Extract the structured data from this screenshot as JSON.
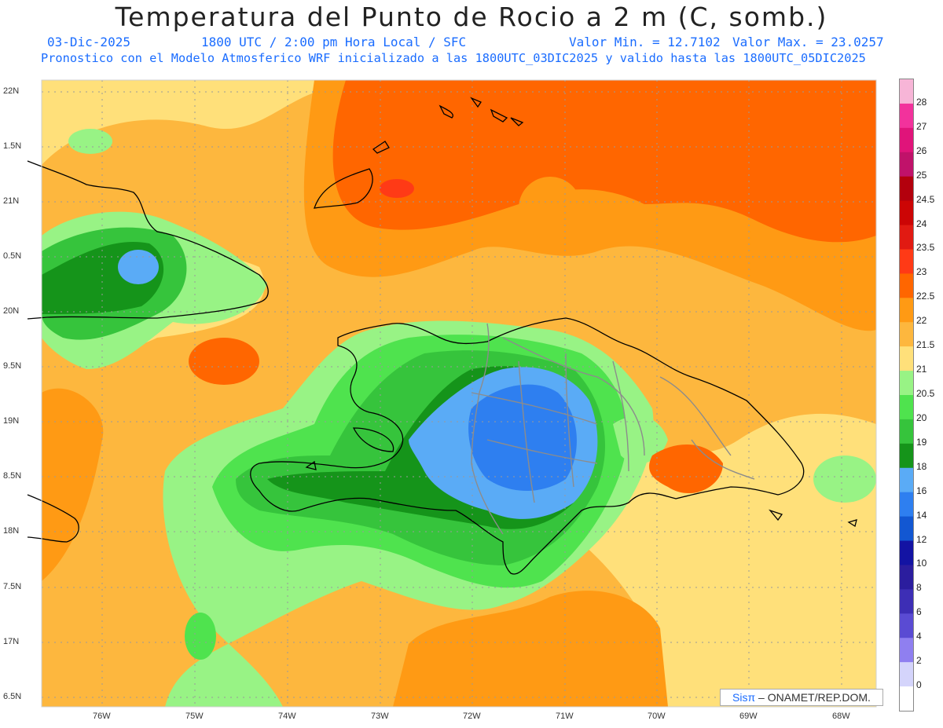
{
  "title": "Temperatura del Punto de Rocio a 2 m (C, somb.)",
  "subtitle": {
    "date": "03-Dic-2025",
    "time": "1800 UTC / 2:00 pm Hora Local / SFC",
    "min": "Valor Min. = 12.7102",
    "max": "Valor Max. = 23.0257",
    "run": "Pronostico con el Modelo Atmosferico WRF inicializado a las 1800UTC_03DIC2025 y valido hasta las  1800UTC_05DIC2025"
  },
  "y_axis": [
    "22N",
    "1.5N",
    "21N",
    "0.5N",
    "20N",
    "9.5N",
    "19N",
    "8.5N",
    "18N",
    "7.5N",
    "17N",
    "6.5N"
  ],
  "x_axis": [
    "76W",
    "75W",
    "74W",
    "73W",
    "72W",
    "71W",
    "70W",
    "69W",
    "68W"
  ],
  "colorbar": {
    "levels": [
      "28",
      "27",
      "26",
      "25",
      "24.5",
      "24",
      "23.5",
      "23",
      "22.5",
      "22",
      "21.5",
      "21",
      "20.5",
      "20",
      "19",
      "18",
      "16",
      "14",
      "12",
      "10",
      "8",
      "6",
      "4",
      "2",
      "0"
    ],
    "colors": [
      "#f7b5d7",
      "#f2329c",
      "#e0147a",
      "#c0126a",
      "#b3000d",
      "#cc0505",
      "#e11a12",
      "#ff3a16",
      "#ff6600",
      "#ff9a14",
      "#fdb73e",
      "#ffe07a",
      "#98f385",
      "#4fe34e",
      "#36c43c",
      "#15941a",
      "#5aabf6",
      "#2e7ff0",
      "#1257d2",
      "#1313a3",
      "#2b1d9e",
      "#3d2eb5",
      "#5a4bd3",
      "#8f7ff0",
      "#d4d4fb",
      "#ffffff"
    ]
  },
  "map": {
    "fill_colors": {
      "warm_base": "#fdb73e",
      "light": "#ffe07a",
      "orange": "#ff9a14",
      "dark_orange": "#ff6600",
      "red": "#ff3a16",
      "pale_green": "#98f385",
      "green": "#4fe34e",
      "mid_green": "#36c43c",
      "dark_green": "#15941a",
      "light_blue": "#5aabf6",
      "blue": "#2e7ff0"
    }
  },
  "credit": {
    "brand": "Sisπ",
    "text": " – ONAMET/REP.DOM."
  }
}
